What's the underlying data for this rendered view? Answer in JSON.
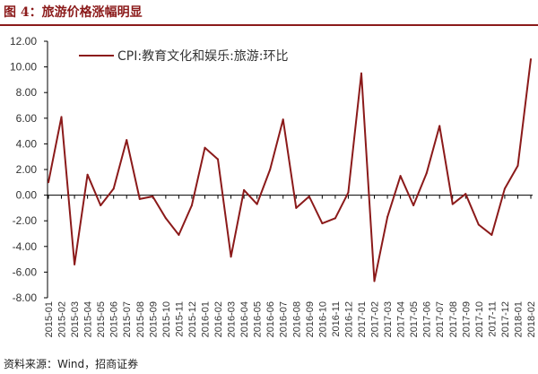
{
  "figure": {
    "title": "图 4：旅游价格涨幅明显",
    "source": "资料来源：Wind，招商证券"
  },
  "chart_data": {
    "type": "line",
    "ylim": [
      -8,
      12
    ],
    "yticks": [
      12,
      10,
      8,
      6,
      4,
      2,
      0,
      -2,
      -4,
      -6,
      -8
    ],
    "ytick_labels": [
      "12.00",
      "10.00",
      "8.00",
      "6.00",
      "4.00",
      "2.00",
      "0.00",
      "-2.00",
      "-4.00",
      "-6.00",
      "-8.00"
    ],
    "grid": false,
    "legend": "top-left",
    "x": [
      "2015-01",
      "2015-02",
      "2015-03",
      "2015-04",
      "2015-05",
      "2015-06",
      "2015-07",
      "2015-08",
      "2015-09",
      "2015-10",
      "2015-11",
      "2015-12",
      "2016-01",
      "2016-02",
      "2016-03",
      "2016-04",
      "2016-05",
      "2016-06",
      "2016-07",
      "2016-08",
      "2016-09",
      "2016-10",
      "2016-11",
      "2016-12",
      "2017-01",
      "2017-02",
      "2017-03",
      "2017-04",
      "2017-05",
      "2017-06",
      "2017-07",
      "2017-08",
      "2017-09",
      "2017-10",
      "2017-11",
      "2017-12",
      "2018-01",
      "2018-02"
    ],
    "series": [
      {
        "name": "CPI:教育文化和娱乐:旅游:环比",
        "color": "#8B1A1A",
        "values": [
          1.0,
          6.1,
          -5.4,
          1.6,
          -0.8,
          0.5,
          4.3,
          -0.3,
          -0.1,
          -1.8,
          -3.1,
          -0.8,
          3.7,
          2.8,
          -4.8,
          0.4,
          -0.7,
          2.0,
          5.9,
          -1.0,
          -0.1,
          -2.2,
          -1.8,
          0.2,
          9.5,
          -6.7,
          -1.7,
          1.5,
          -0.8,
          1.7,
          5.4,
          -0.7,
          0.1,
          -2.3,
          -3.1,
          0.5,
          2.3,
          10.6
        ]
      }
    ]
  }
}
